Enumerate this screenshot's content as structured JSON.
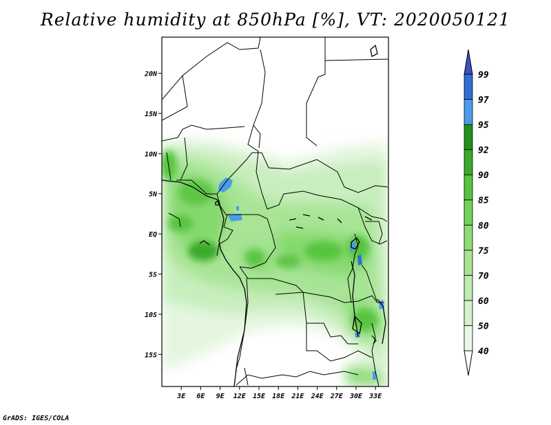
{
  "title": "Relative humidity at 850hPa [%], VT: 2020050121",
  "credit": "GrADS: IGES/COLA",
  "lat_labels": [
    "20N",
    "15N",
    "10N",
    "5N",
    "EQ",
    "5S",
    "10S",
    "15S"
  ],
  "lat_values": [
    20,
    15,
    10,
    5,
    0,
    -5,
    -10,
    -15
  ],
  "lon_labels": [
    "3E",
    "6E",
    "9E",
    "12E",
    "15E",
    "18E",
    "21E",
    "24E",
    "27E",
    "30E",
    "33E"
  ],
  "lon_values": [
    3,
    6,
    9,
    12,
    15,
    18,
    21,
    24,
    27,
    30,
    33
  ],
  "map_extent": {
    "lon_min": 0,
    "lon_max": 35,
    "lat_min": -19,
    "lat_max": 24.5
  },
  "colorbar": {
    "labels": [
      "40",
      "50",
      "60",
      "70",
      "75",
      "80",
      "85",
      "90",
      "92",
      "95",
      "97",
      "99"
    ],
    "colors": [
      "#ffffff",
      "#eaf8e6",
      "#d4f2cb",
      "#bfecb0",
      "#a7e493",
      "#8edc78",
      "#73d25b",
      "#56c43f",
      "#3aa929",
      "#22911a",
      "#4a9ce8",
      "#2f6fd8",
      "#3a50c6"
    ]
  }
}
